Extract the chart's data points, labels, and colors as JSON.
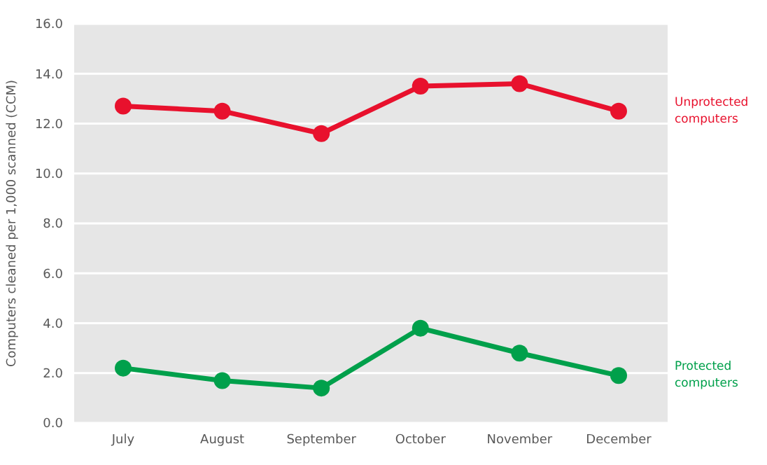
{
  "chart_data": {
    "type": "line",
    "ylabel": "Computers cleaned per 1,000 scanned (CCM)",
    "categories": [
      "July",
      "August",
      "September",
      "October",
      "November",
      "December"
    ],
    "series": [
      {
        "name": "Unprotected computers",
        "color": "#e8112d",
        "values": [
          12.7,
          12.5,
          11.6,
          13.5,
          13.6,
          12.5
        ]
      },
      {
        "name": "Protected computers",
        "color": "#00a04b",
        "values": [
          2.2,
          1.7,
          1.4,
          3.8,
          2.8,
          1.9
        ]
      }
    ],
    "ylim": [
      0,
      16
    ],
    "yticks": [
      {
        "value": 0,
        "label": "0.0"
      },
      {
        "value": 2,
        "label": "2.0"
      },
      {
        "value": 4,
        "label": "4.0"
      },
      {
        "value": 6,
        "label": "6.0"
      },
      {
        "value": 8,
        "label": "8.0"
      },
      {
        "value": 10,
        "label": "10.0"
      },
      {
        "value": 12,
        "label": "12.0"
      },
      {
        "value": 14,
        "label": "14.0"
      },
      {
        "value": 16,
        "label": "16.0"
      }
    ],
    "grid": "y",
    "marker": "circle",
    "line_style": "solid",
    "legend": "right"
  }
}
